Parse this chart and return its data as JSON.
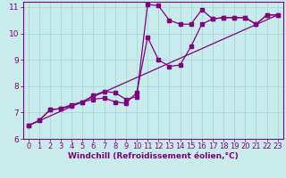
{
  "xlabel": "Windchill (Refroidissement éolien,°C)",
  "bg_color": "#c8ecec",
  "line_color": "#800080",
  "grid_color": "#a8d8d8",
  "axis_color": "#800080",
  "tick_color": "#800080",
  "xlim": [
    -0.5,
    23.5
  ],
  "ylim": [
    6,
    11.2
  ],
  "xticks": [
    0,
    1,
    2,
    3,
    4,
    5,
    6,
    7,
    8,
    9,
    10,
    11,
    12,
    13,
    14,
    15,
    16,
    17,
    18,
    19,
    20,
    21,
    22,
    23
  ],
  "yticks": [
    6,
    7,
    8,
    9,
    10,
    11
  ],
  "line1_x": [
    0,
    1,
    2,
    3,
    4,
    5,
    6,
    7,
    8,
    9,
    10,
    11,
    12,
    13,
    14,
    15,
    16,
    17,
    18,
    19,
    20,
    21,
    22,
    23
  ],
  "line1_y": [
    6.5,
    6.7,
    7.1,
    7.15,
    7.25,
    7.4,
    7.65,
    7.8,
    7.75,
    7.5,
    7.6,
    11.1,
    11.05,
    10.5,
    10.35,
    10.35,
    10.9,
    10.55,
    10.6,
    10.6,
    10.6,
    10.35,
    10.7,
    10.7
  ],
  "line2_x": [
    0,
    1,
    2,
    3,
    4,
    5,
    6,
    7,
    8,
    9,
    10,
    11,
    12,
    13,
    14,
    15,
    16,
    17,
    18,
    19,
    20,
    21,
    22,
    23
  ],
  "line2_y": [
    6.5,
    6.7,
    7.1,
    7.15,
    7.3,
    7.4,
    7.5,
    7.55,
    7.4,
    7.35,
    7.75,
    9.85,
    9.0,
    8.75,
    8.8,
    9.5,
    10.35,
    10.55,
    10.6,
    10.6,
    10.6,
    10.35,
    10.7,
    10.7
  ],
  "line3_x": [
    0,
    23
  ],
  "line3_y": [
    6.5,
    10.7
  ],
  "marker_size": 2.5,
  "linewidth": 0.9,
  "font_size_label": 6.5,
  "font_size_tick": 6.0
}
